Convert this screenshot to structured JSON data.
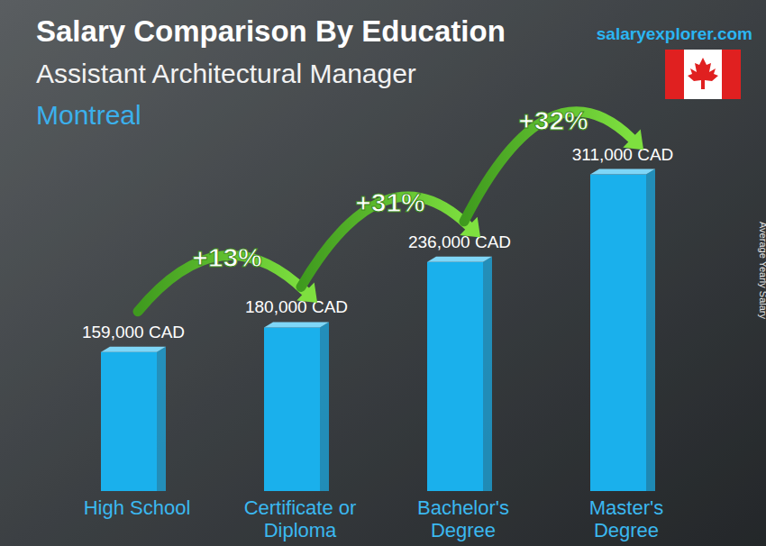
{
  "chart_data": {
    "type": "bar",
    "title": "Salary Comparison By Education",
    "subtitle": "Assistant Architectural Manager",
    "location": "Montreal",
    "source": "salaryexplorer.com",
    "y_label": "Average Yearly Salary",
    "categories": [
      "High School",
      "Certificate or Diploma",
      "Bachelor's Degree",
      "Master's Degree"
    ],
    "values": [
      159000,
      180000,
      236000,
      311000
    ],
    "value_labels": [
      "159,000 CAD",
      "180,000 CAD",
      "236,000 CAD",
      "311,000 CAD"
    ],
    "annotations": [
      "+13%",
      "+31%",
      "+32%"
    ],
    "color": "#1ab0ec",
    "ylim": [
      40000,
      340000
    ],
    "data_labels": true,
    "tick_labels": false,
    "grid": false
  }
}
